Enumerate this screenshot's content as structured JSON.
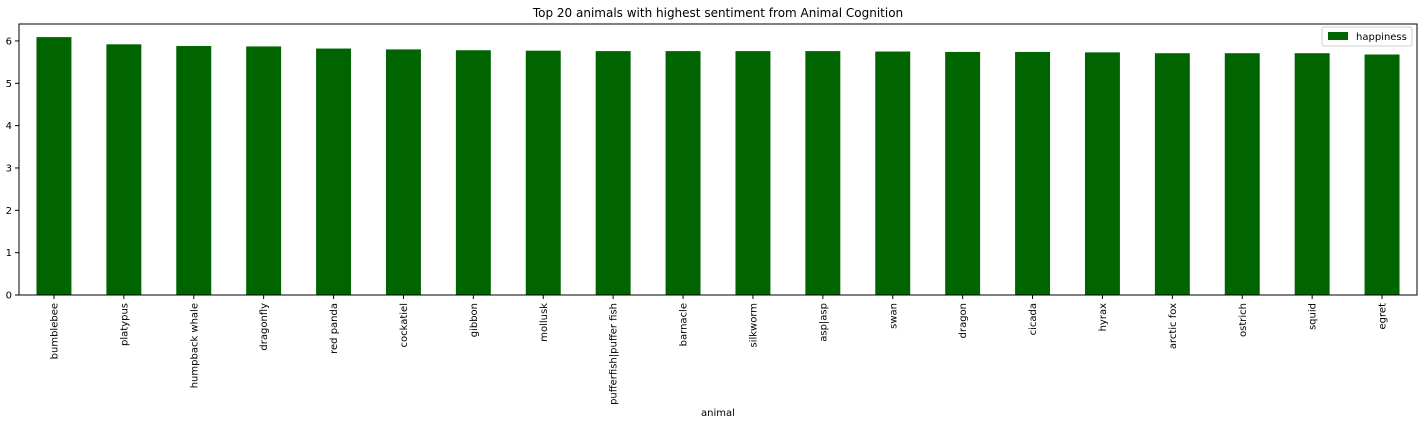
{
  "chart_data": {
    "type": "bar",
    "title": "Top 20 animals with highest sentiment from Animal Cognition",
    "xlabel": "animal",
    "ylabel": "",
    "ylim": [
      0,
      6.4
    ],
    "yticks": [
      0,
      1,
      2,
      3,
      4,
      5,
      6
    ],
    "categories": [
      "bumblebee",
      "platypus",
      "humpback whale",
      "dragonfly",
      "red panda",
      "cockatiel",
      "gibbon",
      "mollusk",
      "pufferfish|puffer fish",
      "barnacle",
      "silkworm",
      "asp|asp",
      "swan",
      "dragon",
      "cicada",
      "hyrax",
      "arctic fox",
      "ostrich",
      "squid",
      "egret"
    ],
    "series": [
      {
        "name": "happiness",
        "color": "#006400",
        "values": [
          6.09,
          5.92,
          5.88,
          5.87,
          5.82,
          5.8,
          5.78,
          5.77,
          5.76,
          5.76,
          5.76,
          5.76,
          5.75,
          5.74,
          5.74,
          5.73,
          5.71,
          5.71,
          5.71,
          5.68
        ]
      }
    ],
    "legend": {
      "position": "top-right"
    },
    "grid": false
  }
}
